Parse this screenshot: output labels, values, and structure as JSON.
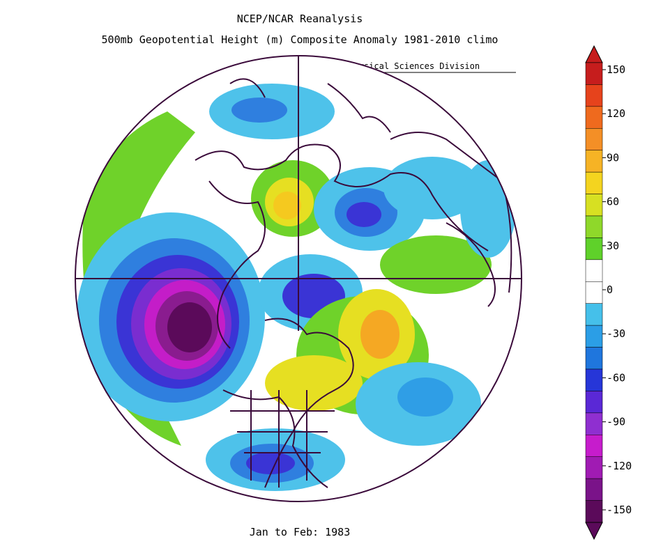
{
  "title_line1": "NCEP/NCAR Reanalysis",
  "title_line2": "500mb Geopotential Height (m) Composite Anomaly 1981-2010 climo",
  "credit": "NOAA/ESRL Physical Sciences Division",
  "footer": "Jan to Feb: 1983",
  "colorbar": {
    "labels": [
      "150",
      "120",
      "90",
      "60",
      "30",
      "0",
      "-30",
      "-60",
      "-90",
      "-120",
      "-150"
    ],
    "colors": [
      "#5b0a5a",
      "#7a1389",
      "#a01bb3",
      "#c61ccc",
      "#8f2fd0",
      "#5a28d6",
      "#2636d8",
      "#1f76dd",
      "#2b9ee6",
      "#45c0ea",
      "#ffffff",
      "#ffffff",
      "#5fd12a",
      "#8fd82a",
      "#d7e022",
      "#f4d41f",
      "#f6b325",
      "#f48f26",
      "#ef6a1e",
      "#e6431c",
      "#c61d1d"
    ],
    "min": -150,
    "max": 150
  }
}
